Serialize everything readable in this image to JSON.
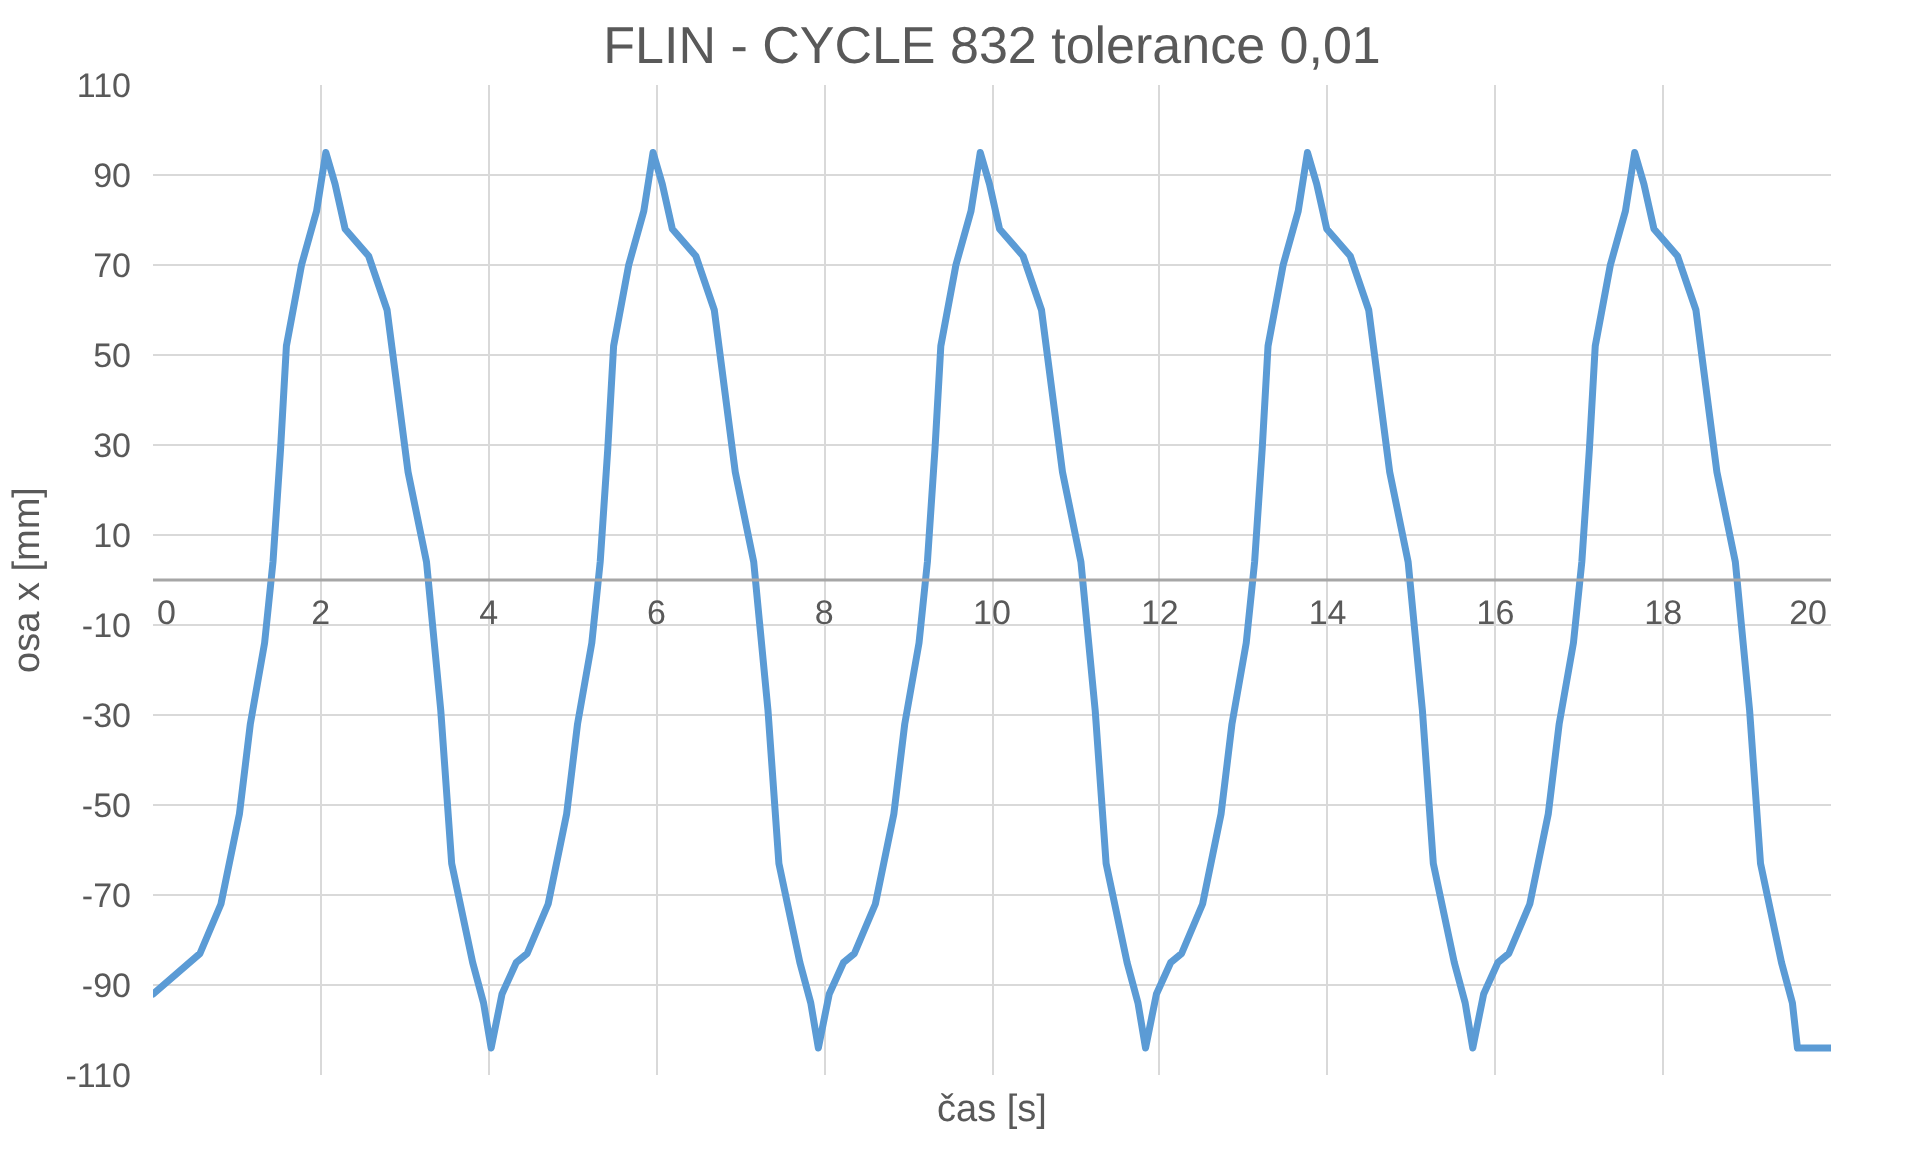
{
  "chart_data": {
    "type": "line",
    "title": "FLIN - CYCLE 832 tolerance 0,01",
    "xlabel": "čas [s]",
    "ylabel": "osa x [mm]",
    "xlim": [
      0,
      20
    ],
    "xticks": [
      0,
      2,
      4,
      6,
      8,
      10,
      12,
      14,
      16,
      18,
      20
    ],
    "ylim": [
      -110,
      110
    ],
    "yticks": [
      -110,
      -90,
      -70,
      -50,
      -30,
      -10,
      10,
      30,
      50,
      70,
      90,
      110
    ],
    "grid": true,
    "marker": "none",
    "line_style": "solid",
    "series": [
      {
        "color": "#5b9bd5",
        "x": [
          0,
          0.56,
          0.81,
          1.03,
          1.16,
          1.33,
          1.43,
          1.52,
          1.59,
          1.77,
          1.95,
          2.06,
          2.17,
          2.29,
          2.57,
          2.79,
          3.04,
          3.26,
          3.43,
          3.56,
          3.81,
          3.94,
          4.03,
          4.16,
          4.33,
          4.46,
          4.71,
          4.93,
          5.06,
          5.23,
          5.33,
          5.42,
          5.49,
          5.67,
          5.85,
          5.96,
          6.07,
          6.19,
          6.47,
          6.69,
          6.94,
          7.16,
          7.33,
          7.46,
          7.71,
          7.84,
          7.93,
          8.06,
          8.23,
          8.36,
          8.61,
          8.83,
          8.96,
          9.13,
          9.23,
          9.32,
          9.39,
          9.57,
          9.75,
          9.86,
          9.97,
          10.09,
          10.37,
          10.59,
          10.84,
          11.06,
          11.23,
          11.36,
          11.61,
          11.74,
          11.83,
          11.96,
          12.13,
          12.26,
          12.51,
          12.73,
          12.86,
          13.03,
          13.13,
          13.22,
          13.29,
          13.47,
          13.65,
          13.76,
          13.87,
          13.99,
          14.27,
          14.49,
          14.74,
          14.96,
          15.13,
          15.26,
          15.51,
          15.64,
          15.73,
          15.86,
          16.03,
          16.16,
          16.41,
          16.63,
          16.76,
          16.93,
          17.03,
          17.12,
          17.19,
          17.37,
          17.55,
          17.66,
          17.77,
          17.89,
          18.17,
          18.39,
          18.64,
          18.86,
          19.03,
          19.16,
          19.41,
          19.54,
          19.6,
          20
        ],
        "values": [
          -92,
          -83,
          -72,
          -52,
          -32,
          -14,
          4,
          29,
          52,
          70,
          82,
          95,
          88,
          78,
          72,
          60,
          24,
          4,
          -29,
          -63,
          -85,
          -94,
          -104,
          -92,
          -85,
          -83,
          -72,
          -52,
          -32,
          -14,
          4,
          29,
          52,
          70,
          82,
          95,
          88,
          78,
          72,
          60,
          24,
          4,
          -29,
          -63,
          -85,
          -94,
          -104,
          -92,
          -85,
          -83,
          -72,
          -52,
          -32,
          -14,
          4,
          29,
          52,
          70,
          82,
          95,
          88,
          78,
          72,
          60,
          24,
          4,
          -29,
          -63,
          -85,
          -94,
          -104,
          -92,
          -85,
          -83,
          -72,
          -52,
          -32,
          -14,
          4,
          29,
          52,
          70,
          82,
          95,
          88,
          78,
          72,
          60,
          24,
          4,
          -29,
          -63,
          -85,
          -94,
          -104,
          -92,
          -85,
          -83,
          -72,
          -52,
          -32,
          -14,
          4,
          29,
          52,
          70,
          82,
          95,
          88,
          78,
          72,
          60,
          24,
          4,
          -29,
          -63,
          -85,
          -94,
          -104,
          -104
        ]
      }
    ]
  }
}
